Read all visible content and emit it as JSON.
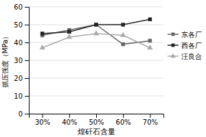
{
  "chart_data": {
    "type": "line",
    "x": [
      30,
      40,
      50,
      60,
      70
    ],
    "xlim": [
      25,
      75
    ],
    "xticks": [
      {
        "value": 30,
        "label": "30%"
      },
      {
        "value": 40,
        "label": "40%"
      },
      {
        "value": 50,
        "label": "50%"
      },
      {
        "value": 60,
        "label": "60%"
      },
      {
        "value": 70,
        "label": "70%"
      }
    ],
    "ylim": [
      0,
      60
    ],
    "yticks": [
      0,
      10,
      20,
      30,
      40,
      50,
      60
    ],
    "xlabel": "煌矸石含量",
    "ylabel": "抓压强度（MPa）",
    "grid": true,
    "legend": "right",
    "series": [
      {
        "name": "东各厂",
        "color": "#666666",
        "marker": "square",
        "line_style": "solid",
        "values": [
          44,
          47,
          50,
          39,
          41
        ]
      },
      {
        "name": "西各厂",
        "color": "#222222",
        "marker": "square",
        "line_style": "solid",
        "values": [
          45,
          46,
          50,
          50,
          53
        ]
      },
      {
        "name": "汪良合",
        "color": "#aaaaaa",
        "marker": "triangle",
        "line_style": "solid",
        "values": [
          37,
          43,
          45,
          44,
          37
        ]
      }
    ]
  }
}
